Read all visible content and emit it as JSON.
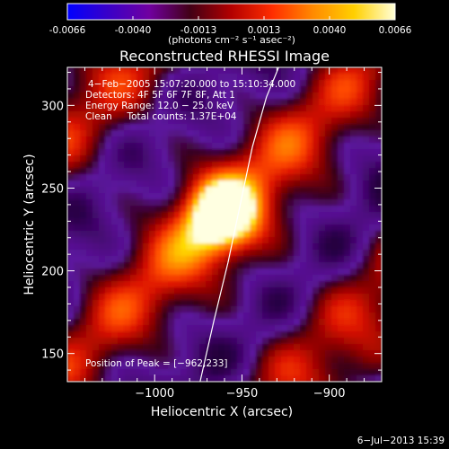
{
  "colorbar": {
    "ticks": [
      "-0.0066",
      "-0.0040",
      "-0.0013",
      "0.0013",
      "0.0040",
      "0.0066"
    ],
    "units_label": "(photons cm⁻² s⁻¹ asec⁻²)",
    "range": [
      -0.0066,
      0.0066
    ],
    "colors": [
      "#0000ff",
      "#3a00c8",
      "#7000a0",
      "#420016",
      "#b30000",
      "#ff2d00",
      "#ff8a00",
      "#ffd000",
      "#ffffd8"
    ]
  },
  "chart_data": {
    "type": "heatmap",
    "title": "Reconstructed RHESSI Image",
    "xlabel": "Heliocentric X (arcsec)",
    "ylabel": "Heliocentric Y (arcsec)",
    "xlim": [
      -1050,
      -870
    ],
    "ylim": [
      133,
      323
    ],
    "xticks": [
      {
        "value": -1000,
        "label": "−1000"
      },
      {
        "value": -950,
        "label": "−950"
      },
      {
        "value": -900,
        "label": "−900"
      }
    ],
    "yticks": [
      {
        "value": 150,
        "label": "150"
      },
      {
        "value": 200,
        "label": "200"
      },
      {
        "value": 250,
        "label": "250"
      },
      {
        "value": 300,
        "label": "300"
      }
    ],
    "info_lines": [
      "4−Feb−2005 15:07:20.000 to 15:10:34.000",
      "Detectors: 4F 5F 6F 7F 8F, Att 1",
      "Energy Range: 12.0 − 25.0 keV",
      "Clean     Total counts: 1.37E+04"
    ],
    "peak_label": "Position of Peak = [−962,233]",
    "peak": [
      -962,
      233
    ],
    "limb_curve": [
      [
        -974,
        133
      ],
      [
        -966,
        170
      ],
      [
        -958,
        205
      ],
      [
        -951,
        240
      ],
      [
        -944,
        275
      ],
      [
        -936,
        305
      ],
      [
        -929,
        323
      ]
    ]
  },
  "footer": {
    "timestamp": "6−Jul−2013 15:39"
  }
}
